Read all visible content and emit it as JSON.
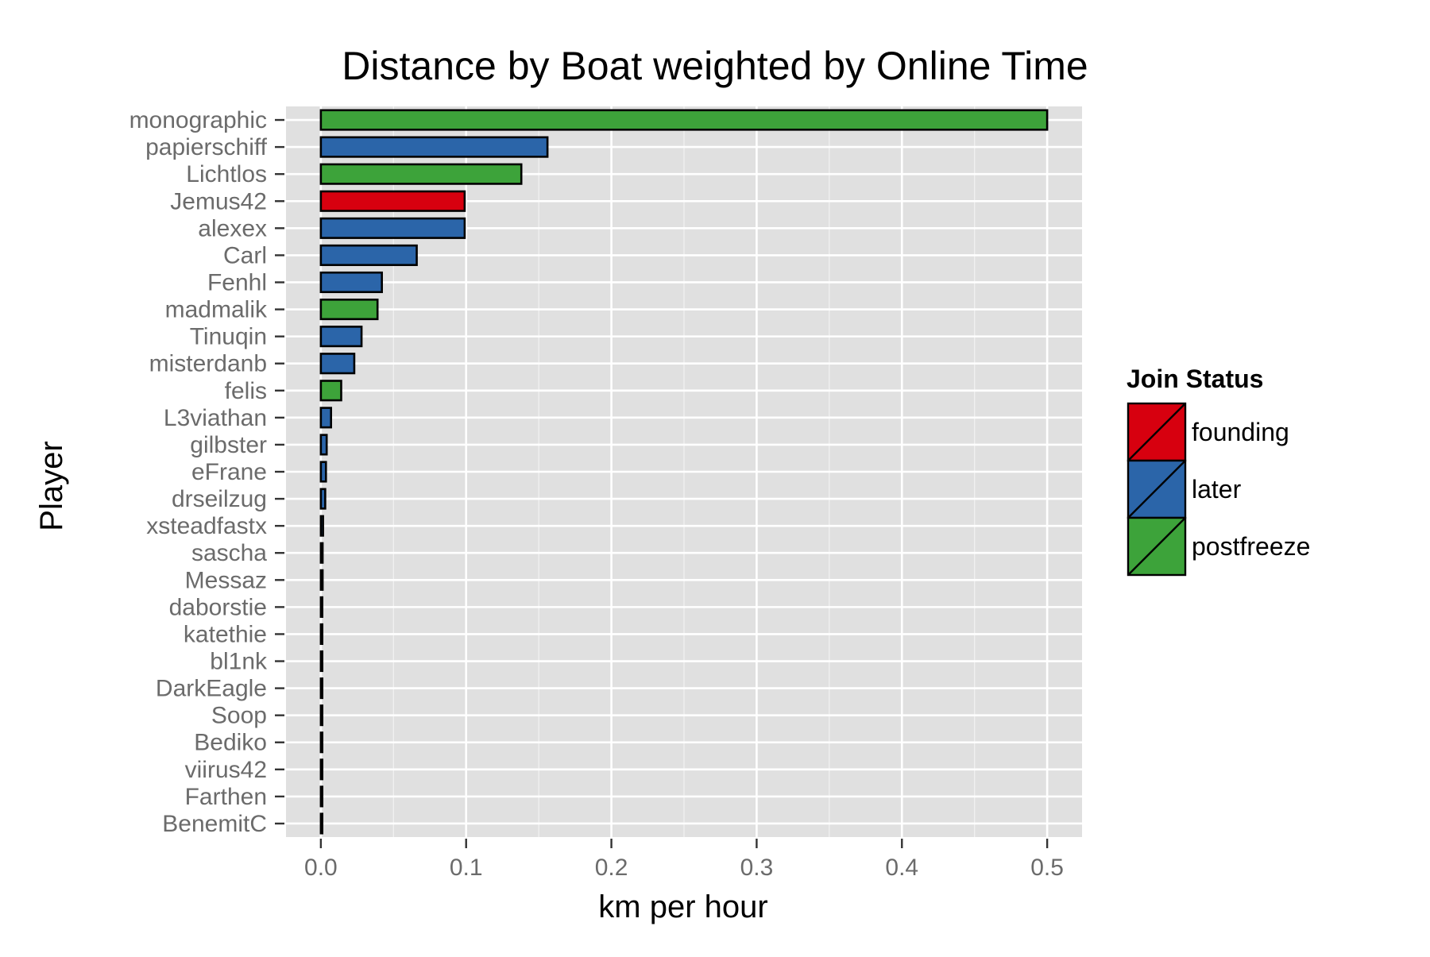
{
  "chart_data": {
    "type": "bar",
    "orientation": "horizontal",
    "title": "Distance by Boat weighted by Online Time",
    "xlabel": "km per hour",
    "ylabel": "Player",
    "xlim": [
      -0.024,
      0.524
    ],
    "x_ticks": [
      0.0,
      0.1,
      0.2,
      0.3,
      0.4,
      0.5
    ],
    "x_tick_labels": [
      "0.0",
      "0.1",
      "0.2",
      "0.3",
      "0.4",
      "0.5"
    ],
    "grid": true,
    "legend": {
      "title": "Join Status",
      "position": "right",
      "entries": [
        {
          "label": "founding",
          "color": "#d7000f"
        },
        {
          "label": "later",
          "color": "#2b65a9"
        },
        {
          "label": "postfreeze",
          "color": "#3da33a"
        }
      ]
    },
    "categories": [
      "monographic",
      "papierschiff",
      "Lichtlos",
      "Jemus42",
      "alexex",
      "Carl",
      "Fenhl",
      "madmalik",
      "Tinuqin",
      "misterdanb",
      "felis",
      "L3viathan",
      "gilbster",
      "eFrane",
      "drseilzug",
      "xsteadfastx",
      "sascha",
      "Messaz",
      "daborstie",
      "katethie",
      "bl1nk",
      "DarkEagle",
      "Soop",
      "Bediko",
      "viirus42",
      "Farthen",
      "BenemitC"
    ],
    "values": [
      0.5,
      0.156,
      0.138,
      0.099,
      0.099,
      0.066,
      0.042,
      0.039,
      0.028,
      0.023,
      0.014,
      0.007,
      0.004,
      0.0035,
      0.003,
      0.0015,
      0.0012,
      0.0012,
      0.001,
      0.001,
      0.001,
      0.001,
      0.001,
      0.001,
      0.001,
      0.001,
      0.001
    ],
    "status": [
      "postfreeze",
      "later",
      "postfreeze",
      "founding",
      "later",
      "later",
      "later",
      "postfreeze",
      "later",
      "later",
      "postfreeze",
      "later",
      "later",
      "later",
      "later",
      "later",
      "later",
      "later",
      "later",
      "later",
      "later",
      "later",
      "later",
      "later",
      "later",
      "later",
      "later"
    ],
    "colors": {
      "founding": "#d7000f",
      "later": "#2b65a9",
      "postfreeze": "#3da33a",
      "panel_background": "#e0e0e0",
      "grid": "#ffffff"
    }
  }
}
